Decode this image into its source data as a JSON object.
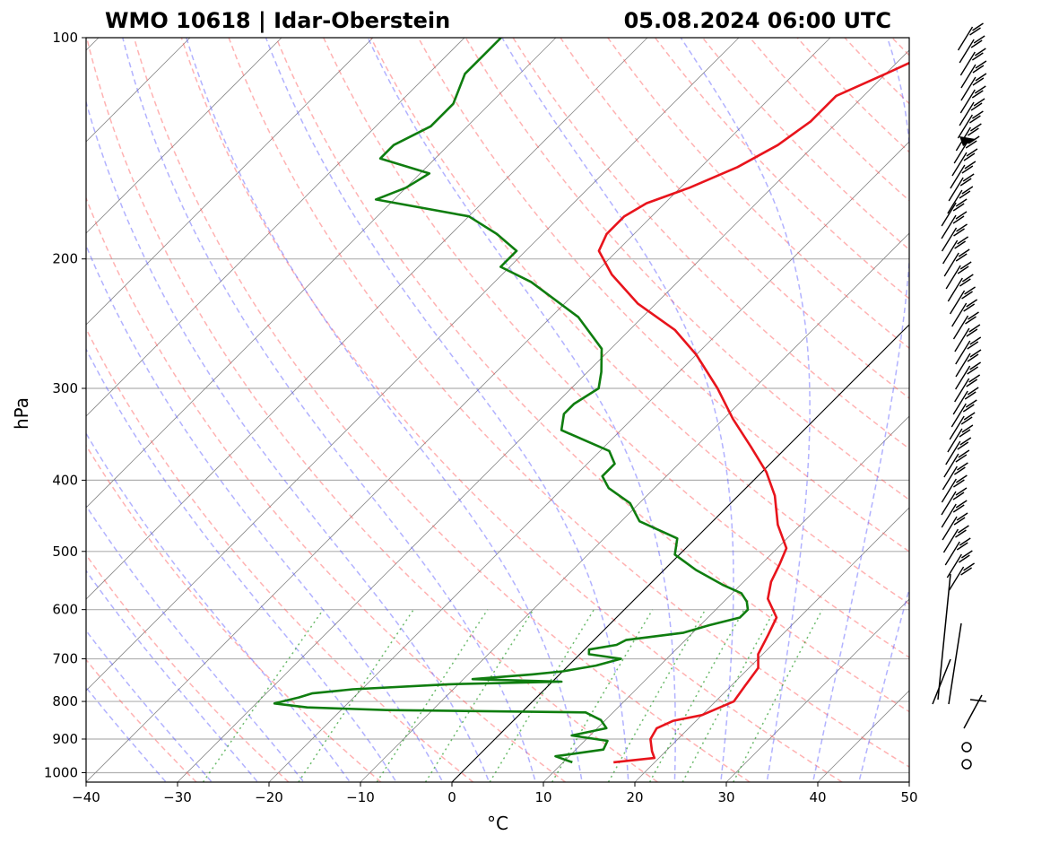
{
  "chart_data": {
    "type": "line",
    "title_left": "WMO 10618 | Idar-Oberstein",
    "title_right": "05.08.2024 06:00 UTC",
    "xlabel": "°C",
    "ylabel": "hPa",
    "xlim": [
      -40,
      50
    ],
    "ylim": [
      1030,
      100
    ],
    "y_scale": "log",
    "skew": true,
    "grid": true,
    "x_ticks": [
      "−40",
      "−30",
      "−20",
      "−10",
      "0",
      "10",
      "20",
      "30",
      "40",
      "50"
    ],
    "y_ticks": [
      "100",
      "200",
      "300",
      "400",
      "500",
      "600",
      "700",
      "800",
      "900",
      "1000"
    ],
    "series": [
      {
        "color": "#e8141c",
        "points": [
          [
            968,
            15.5
          ],
          [
            955,
            19.5
          ],
          [
            935,
            18.5
          ],
          [
            900,
            17
          ],
          [
            870,
            16.5
          ],
          [
            850,
            17.5
          ],
          [
            835,
            20
          ],
          [
            800,
            22
          ],
          [
            760,
            21.5
          ],
          [
            720,
            21
          ],
          [
            690,
            19.5
          ],
          [
            650,
            18.5
          ],
          [
            615,
            17.5
          ],
          [
            580,
            14.5
          ],
          [
            550,
            13
          ],
          [
            520,
            12
          ],
          [
            495,
            11
          ],
          [
            460,
            7.5
          ],
          [
            420,
            4
          ],
          [
            390,
            0.5
          ],
          [
            360,
            -4
          ],
          [
            330,
            -9
          ],
          [
            300,
            -14
          ],
          [
            270,
            -20
          ],
          [
            250,
            -25
          ],
          [
            230,
            -32
          ],
          [
            210,
            -38
          ],
          [
            195,
            -42
          ],
          [
            185,
            -43
          ],
          [
            175,
            -43
          ],
          [
            168,
            -42
          ],
          [
            160,
            -39
          ],
          [
            150,
            -36
          ],
          [
            140,
            -34
          ],
          [
            130,
            -33
          ],
          [
            120,
            -33
          ],
          [
            112,
            -30
          ],
          [
            104,
            -27
          ],
          [
            100,
            -28
          ]
        ]
      },
      {
        "color": "#0f7d0f",
        "points": [
          [
            968,
            11
          ],
          [
            950,
            8.5
          ],
          [
            930,
            13
          ],
          [
            905,
            12.5
          ],
          [
            890,
            8
          ],
          [
            870,
            11
          ],
          [
            848,
            9.5
          ],
          [
            828,
            7
          ],
          [
            822,
            -15
          ],
          [
            815,
            -24
          ],
          [
            805,
            -28
          ],
          [
            790,
            -26
          ],
          [
            780,
            -25
          ],
          [
            770,
            -21
          ],
          [
            758,
            -11
          ],
          [
            752,
            1
          ],
          [
            746,
            -9
          ],
          [
            735,
            -3
          ],
          [
            728,
            0
          ],
          [
            715,
            3
          ],
          [
            700,
            5
          ],
          [
            690,
            1
          ],
          [
            680,
            0.5
          ],
          [
            670,
            3
          ],
          [
            660,
            3.5
          ],
          [
            645,
            9
          ],
          [
            630,
            11
          ],
          [
            615,
            13.5
          ],
          [
            600,
            13.5
          ],
          [
            585,
            12.5
          ],
          [
            570,
            11
          ],
          [
            555,
            8
          ],
          [
            530,
            3.5
          ],
          [
            505,
            -0.5
          ],
          [
            480,
            -2
          ],
          [
            455,
            -8
          ],
          [
            430,
            -11
          ],
          [
            410,
            -15
          ],
          [
            395,
            -17
          ],
          [
            380,
            -17
          ],
          [
            365,
            -19
          ],
          [
            342,
            -26.5
          ],
          [
            325,
            -28
          ],
          [
            315,
            -28
          ],
          [
            300,
            -27
          ],
          [
            285,
            -28.5
          ],
          [
            265,
            -31
          ],
          [
            240,
            -37
          ],
          [
            215,
            -46
          ],
          [
            205,
            -51
          ],
          [
            195,
            -51
          ],
          [
            185,
            -55
          ],
          [
            175,
            -60
          ],
          [
            166,
            -72
          ],
          [
            160,
            -70
          ],
          [
            153,
            -69
          ],
          [
            146,
            -76
          ],
          [
            140,
            -76
          ],
          [
            132,
            -74
          ],
          [
            123,
            -74
          ],
          [
            112,
            -76
          ],
          [
            105,
            -76
          ],
          [
            100,
            -76
          ]
        ]
      }
    ]
  }
}
